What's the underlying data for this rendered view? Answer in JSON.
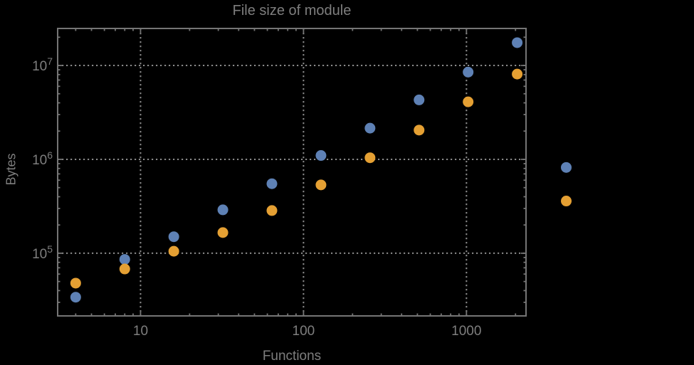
{
  "colors": {
    "background": "#000000",
    "text": "#7e7e7e",
    "frame": "#757575",
    "grid": "#8a8a8a",
    "series_blue": "#5e81b5",
    "series_orange": "#e5a033"
  },
  "chart_data": {
    "type": "scatter",
    "title": "File size of module",
    "xlabel": "Functions",
    "ylabel": "Bytes",
    "xscale": "log",
    "yscale": "log",
    "xlim": [
      3.1,
      2320
    ],
    "ylim": [
      21500,
      24800000
    ],
    "grid": "dotted at major ticks",
    "legend": "none",
    "clipping": false,
    "x_major_ticks": [
      {
        "value": 10,
        "label": "10"
      },
      {
        "value": 100,
        "label": "100"
      },
      {
        "value": 1000,
        "label": "1000"
      }
    ],
    "y_major_ticks": [
      {
        "value": 100000,
        "base": "10",
        "exp": "5"
      },
      {
        "value": 1000000,
        "base": "10",
        "exp": "6"
      },
      {
        "value": 10000000,
        "base": "10",
        "exp": "7"
      }
    ],
    "x": [
      4,
      8,
      16,
      32,
      64,
      128,
      256,
      512,
      1024,
      2048,
      4096
    ],
    "series": [
      {
        "name": "series-blue",
        "color": "#5e81b5",
        "values": [
          34000,
          86000,
          150000,
          290000,
          550000,
          1100000,
          2150000,
          4300000,
          8500000,
          17500000,
          820000
        ]
      },
      {
        "name": "series-orange",
        "color": "#e5a033",
        "values": [
          48000,
          68000,
          105000,
          166000,
          285000,
          535000,
          1040000,
          2050000,
          4100000,
          8100000,
          360000
        ]
      }
    ]
  }
}
